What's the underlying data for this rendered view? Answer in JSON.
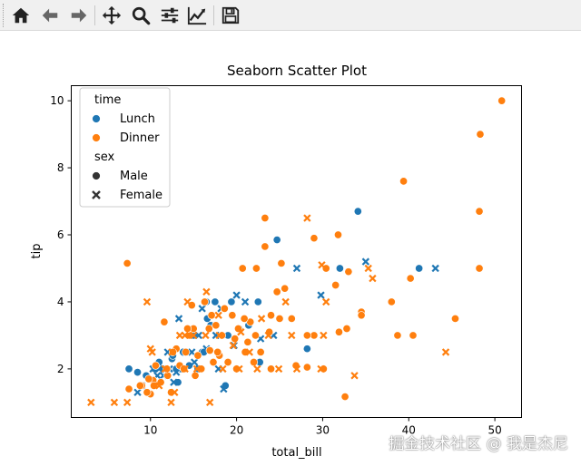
{
  "toolbar": {
    "buttons": [
      {
        "name": "home",
        "icon": "home-icon"
      },
      {
        "name": "back",
        "icon": "arrow-left-icon"
      },
      {
        "name": "forward",
        "icon": "arrow-right-icon"
      },
      {
        "name": "pan",
        "icon": "move-icon"
      },
      {
        "name": "zoom",
        "icon": "magnifier-icon"
      },
      {
        "name": "subplots",
        "icon": "sliders-icon"
      },
      {
        "name": "customize",
        "icon": "line-chart-icon"
      },
      {
        "name": "save",
        "icon": "floppy-disk-icon"
      }
    ]
  },
  "watermark": "掘金技术社区 @ 我是杰尼",
  "chart_data": {
    "type": "scatter",
    "title": "Seaborn Scatter Plot",
    "xlabel": "total_bill",
    "ylabel": "tip",
    "xlim": [
      0.8,
      53.1
    ],
    "ylim": [
      0.55,
      10.45
    ],
    "xticks": [
      10,
      20,
      30,
      40,
      50
    ],
    "yticks": [
      2,
      4,
      6,
      8,
      10
    ],
    "grid": false,
    "legend": {
      "placement": "upper-left",
      "hue_title": "time",
      "hue_entries": [
        {
          "label": "Lunch",
          "color": "#1f77b4"
        },
        {
          "label": "Dinner",
          "color": "#ff7f0e"
        }
      ],
      "style_title": "sex",
      "style_entries": [
        {
          "label": "Male",
          "marker": "circle"
        },
        {
          "label": "Female",
          "marker": "x"
        }
      ]
    },
    "series": [
      {
        "hue": "Lunch",
        "style": "Male",
        "color": "#1f77b4",
        "marker": "circle",
        "points": [
          [
            24.7,
            5.85
          ],
          [
            34.1,
            6.7
          ],
          [
            32.0,
            5.0
          ],
          [
            41.2,
            5.0
          ],
          [
            22.5,
            4.0
          ],
          [
            17.5,
            4.0
          ],
          [
            16.5,
            4.0
          ],
          [
            19.4,
            4.0
          ],
          [
            16.6,
            3.5
          ],
          [
            15.0,
            3.0
          ],
          [
            19.0,
            3.0
          ],
          [
            17.0,
            3.3
          ],
          [
            13.8,
            2.5
          ],
          [
            12.5,
            2.3
          ],
          [
            11.5,
            2.0
          ],
          [
            10.5,
            2.0
          ],
          [
            13.5,
            2.0
          ],
          [
            15.5,
            2.0
          ],
          [
            16.0,
            2.5
          ],
          [
            7.5,
            2.0
          ],
          [
            9.5,
            1.8
          ],
          [
            8.5,
            1.9
          ],
          [
            13.2,
            1.6
          ],
          [
            12.6,
            2.4
          ],
          [
            18.7,
            1.5
          ],
          [
            22.7,
            2.2
          ],
          [
            28.2,
            2.6
          ],
          [
            16.2,
            2.5
          ],
          [
            11.0,
            2.2
          ],
          [
            14.5,
            2.1
          ],
          [
            20.3,
            3.2
          ],
          [
            21.4,
            3.3
          ],
          [
            13.0,
            2.0
          ]
        ]
      },
      {
        "hue": "Lunch",
        "style": "Female",
        "color": "#1f77b4",
        "marker": "x",
        "points": [
          [
            43.1,
            5.0
          ],
          [
            35.0,
            5.2
          ],
          [
            29.8,
            4.2
          ],
          [
            27.0,
            5.0
          ],
          [
            20.0,
            4.2
          ],
          [
            21.0,
            4.0
          ],
          [
            13.3,
            3.5
          ],
          [
            16.0,
            3.8
          ],
          [
            18.2,
            3.8
          ],
          [
            17.6,
            3.0
          ],
          [
            14.0,
            2.5
          ],
          [
            12.0,
            2.5
          ],
          [
            10.3,
            2.0
          ],
          [
            11.0,
            2.0
          ],
          [
            12.2,
            2.0
          ],
          [
            14.8,
            2.5
          ],
          [
            18.5,
            1.4
          ],
          [
            8.5,
            1.3
          ],
          [
            16.5,
            2.6
          ],
          [
            13.0,
            1.9
          ],
          [
            10.8,
            1.8
          ],
          [
            15.6,
            3.0
          ],
          [
            19.7,
            2.7
          ],
          [
            22.8,
            2.9
          ],
          [
            12.7,
            1.6
          ],
          [
            9.0,
            1.5
          ],
          [
            24.3,
            3.0
          ],
          [
            15.1,
            2.2
          ],
          [
            11.5,
            1.8
          ],
          [
            17.9,
            2.0
          ]
        ]
      },
      {
        "hue": "Dinner",
        "style": "Male",
        "color": "#ff7f0e",
        "marker": "circle",
        "points": [
          [
            50.8,
            10.0
          ],
          [
            48.3,
            9.0
          ],
          [
            48.2,
            6.7
          ],
          [
            39.4,
            7.6
          ],
          [
            23.3,
            6.5
          ],
          [
            29.0,
            5.9
          ],
          [
            31.8,
            6.0
          ],
          [
            23.3,
            5.65
          ],
          [
            7.3,
            5.15
          ],
          [
            20.7,
            5.0
          ],
          [
            22.3,
            5.0
          ],
          [
            25.2,
            5.15
          ],
          [
            30.4,
            5.0
          ],
          [
            48.2,
            5.0
          ],
          [
            40.2,
            4.7
          ],
          [
            33.0,
            4.9
          ],
          [
            31.5,
            4.5
          ],
          [
            38.0,
            4.0
          ],
          [
            34.5,
            3.7
          ],
          [
            34.5,
            3.6
          ],
          [
            45.4,
            3.5
          ],
          [
            38.7,
            3.0
          ],
          [
            40.5,
            3.0
          ],
          [
            31.9,
            3.1
          ],
          [
            29.0,
            3.0
          ],
          [
            28.2,
            3.0
          ],
          [
            24.7,
            4.3
          ],
          [
            25.0,
            3.5
          ],
          [
            26.4,
            3.5
          ],
          [
            24.0,
            3.6
          ],
          [
            22.2,
            3.0
          ],
          [
            21.6,
            3.4
          ],
          [
            20.2,
            3.2
          ],
          [
            19.8,
            2.9
          ],
          [
            18.3,
            3.0
          ],
          [
            17.6,
            3.3
          ],
          [
            16.8,
            3.2
          ],
          [
            16.3,
            4.0
          ],
          [
            15.0,
            3.2
          ],
          [
            14.5,
            3.0
          ],
          [
            14.1,
            2.5
          ],
          [
            13.0,
            2.6
          ],
          [
            12.6,
            2.5
          ],
          [
            11.6,
            3.4
          ],
          [
            10.6,
            2.1
          ],
          [
            10.3,
            1.66
          ],
          [
            9.8,
            1.7
          ],
          [
            9.0,
            1.5
          ],
          [
            7.5,
            1.4
          ],
          [
            10.0,
            1.25
          ],
          [
            10.4,
            1.5
          ],
          [
            11.2,
            1.6
          ],
          [
            12.0,
            1.8
          ],
          [
            13.4,
            2.1
          ],
          [
            15.9,
            2.0
          ],
          [
            17.3,
            2.2
          ],
          [
            18.0,
            2.4
          ],
          [
            19.0,
            2.2
          ],
          [
            20.0,
            2.0
          ],
          [
            21.0,
            2.5
          ],
          [
            22.0,
            2.2
          ],
          [
            24.0,
            2.0
          ],
          [
            26.9,
            2.1
          ],
          [
            28.2,
            2.05
          ],
          [
            30.1,
            2.0
          ],
          [
            32.6,
            1.17
          ],
          [
            32.8,
            3.2
          ],
          [
            25.6,
            4.4
          ],
          [
            16.9,
            2.55
          ],
          [
            14.3,
            3.2
          ],
          [
            15.5,
            2.4
          ],
          [
            18.6,
            3.8
          ],
          [
            20.9,
            3.5
          ],
          [
            23.8,
            3.1
          ],
          [
            12.4,
            1.3
          ],
          [
            11.9,
            2.0
          ],
          [
            8.8,
            1.5
          ],
          [
            17.8,
            2.5
          ],
          [
            19.5,
            3.6
          ],
          [
            21.3,
            2.8
          ],
          [
            15.2,
            1.8
          ],
          [
            13.9,
            2.0
          ],
          [
            22.8,
            2.5
          ],
          [
            14.8,
            3.9
          ],
          [
            17.1,
            3.6
          ],
          [
            9.6,
            1.3
          ]
        ]
      },
      {
        "hue": "Dinner",
        "style": "Female",
        "color": "#ff7f0e",
        "marker": "x",
        "points": [
          [
            28.2,
            6.5
          ],
          [
            29.9,
            5.1
          ],
          [
            35.3,
            5.0
          ],
          [
            35.8,
            4.7
          ],
          [
            30.4,
            4.0
          ],
          [
            25.7,
            4.0
          ],
          [
            22.9,
            3.5
          ],
          [
            26.4,
            3.0
          ],
          [
            16.5,
            4.3
          ],
          [
            9.6,
            4.0
          ],
          [
            14.3,
            4.0
          ],
          [
            18.0,
            3.0
          ],
          [
            16.4,
            3.0
          ],
          [
            15.0,
            3.0
          ],
          [
            14.0,
            3.0
          ],
          [
            13.4,
            3.0
          ],
          [
            11.7,
            2.0
          ],
          [
            12.5,
            2.5
          ],
          [
            10.2,
            2.5
          ],
          [
            10.0,
            2.6
          ],
          [
            3.1,
            1.0
          ],
          [
            5.8,
            1.0
          ],
          [
            7.3,
            1.0
          ],
          [
            12.4,
            1.0
          ],
          [
            16.9,
            1.0
          ],
          [
            11.0,
            1.5
          ],
          [
            14.0,
            2.0
          ],
          [
            18.4,
            2.0
          ],
          [
            20.3,
            2.0
          ],
          [
            22.4,
            2.0
          ],
          [
            24.9,
            2.0
          ],
          [
            27.0,
            2.0
          ],
          [
            29.8,
            2.0
          ],
          [
            44.3,
            2.5
          ],
          [
            33.7,
            1.8
          ],
          [
            15.4,
            2.0
          ],
          [
            20.5,
            3.1
          ],
          [
            23.7,
            3.0
          ],
          [
            30.1,
            3.0
          ],
          [
            17.9,
            3.6
          ],
          [
            12.8,
            1.3
          ],
          [
            19.6,
            2.7
          ],
          [
            21.5,
            2.5
          ]
        ]
      }
    ]
  }
}
